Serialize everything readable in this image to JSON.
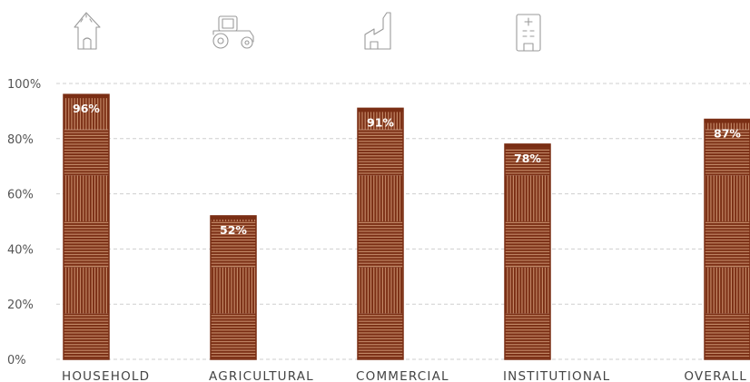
{
  "chart_data": {
    "type": "bar",
    "categories": [
      "HOUSEHOLD",
      "AGRICULTURAL",
      "COMMERCIAL",
      "INSTITUTIONAL",
      "OVERALL"
    ],
    "values": [
      96,
      52,
      91,
      78,
      87
    ],
    "value_labels": [
      "96%",
      "52%",
      "91%",
      "78%",
      "87%"
    ],
    "category_icons": [
      "hut-icon",
      "tractor-icon",
      "factory-icon",
      "hospital-icon",
      ""
    ],
    "yticks": [
      "0%",
      "20%",
      "40%",
      "60%",
      "80%",
      "100%"
    ],
    "ylim": [
      0,
      100
    ],
    "grid": true,
    "title": "",
    "xlabel": "",
    "ylabel": "",
    "colors": {
      "bar": "#7a2e14",
      "bar_stripe": "#c9906e",
      "grid": "#cfcfcf"
    }
  }
}
